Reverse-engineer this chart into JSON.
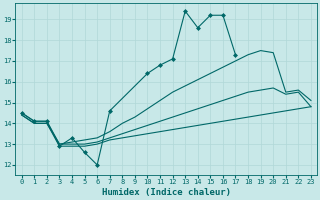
{
  "xlabel": "Humidex (Indice chaleur)",
  "bg_color": "#c8e8e8",
  "grid_color": "#b0d8d8",
  "line_color": "#006868",
  "xlim": [
    -0.5,
    23.5
  ],
  "ylim": [
    11.5,
    19.8
  ],
  "yticks": [
    12,
    13,
    14,
    15,
    16,
    17,
    18,
    19
  ],
  "xticks": [
    0,
    1,
    2,
    3,
    4,
    5,
    6,
    7,
    8,
    9,
    10,
    11,
    12,
    13,
    14,
    15,
    16,
    17,
    18,
    19,
    20,
    21,
    22,
    23
  ],
  "series": [
    {
      "x": [
        0,
        1,
        2,
        3,
        4,
        5,
        6,
        7,
        10,
        11,
        12,
        13,
        14,
        15,
        16,
        17
      ],
      "y": [
        14.5,
        14.1,
        14.1,
        12.9,
        13.3,
        12.6,
        12.0,
        14.6,
        16.4,
        16.8,
        17.1,
        19.4,
        18.6,
        19.2,
        19.2,
        17.3
      ],
      "marker": true
    },
    {
      "x": [
        0,
        1,
        2,
        3,
        4,
        5,
        6,
        7,
        8,
        9,
        10,
        11,
        12,
        13,
        14,
        15,
        16,
        17,
        18,
        19,
        20,
        21,
        22,
        23
      ],
      "y": [
        14.5,
        14.1,
        14.1,
        13.0,
        13.1,
        13.2,
        13.3,
        13.6,
        14.0,
        14.3,
        14.7,
        15.1,
        15.5,
        15.8,
        16.1,
        16.4,
        16.7,
        17.0,
        17.3,
        17.5,
        17.4,
        15.5,
        15.6,
        15.1
      ],
      "marker": false
    },
    {
      "x": [
        0,
        1,
        2,
        3,
        4,
        5,
        6,
        7,
        8,
        9,
        10,
        11,
        12,
        13,
        14,
        15,
        16,
        17,
        18,
        19,
        20,
        21,
        22,
        23
      ],
      "y": [
        14.4,
        14.0,
        14.0,
        13.0,
        13.0,
        13.0,
        13.1,
        13.3,
        13.5,
        13.7,
        13.9,
        14.1,
        14.3,
        14.5,
        14.7,
        14.9,
        15.1,
        15.3,
        15.5,
        15.6,
        15.7,
        15.4,
        15.5,
        14.8
      ],
      "marker": false
    },
    {
      "x": [
        0,
        1,
        2,
        3,
        4,
        5,
        6,
        7,
        8,
        9,
        10,
        11,
        12,
        13,
        14,
        15,
        16,
        17,
        18,
        19,
        20,
        21,
        22,
        23
      ],
      "y": [
        14.4,
        14.0,
        14.0,
        12.9,
        12.9,
        12.9,
        13.0,
        13.2,
        13.3,
        13.4,
        13.5,
        13.6,
        13.7,
        13.8,
        13.9,
        14.0,
        14.1,
        14.2,
        14.3,
        14.4,
        14.5,
        14.6,
        14.7,
        14.8
      ],
      "marker": false
    }
  ]
}
